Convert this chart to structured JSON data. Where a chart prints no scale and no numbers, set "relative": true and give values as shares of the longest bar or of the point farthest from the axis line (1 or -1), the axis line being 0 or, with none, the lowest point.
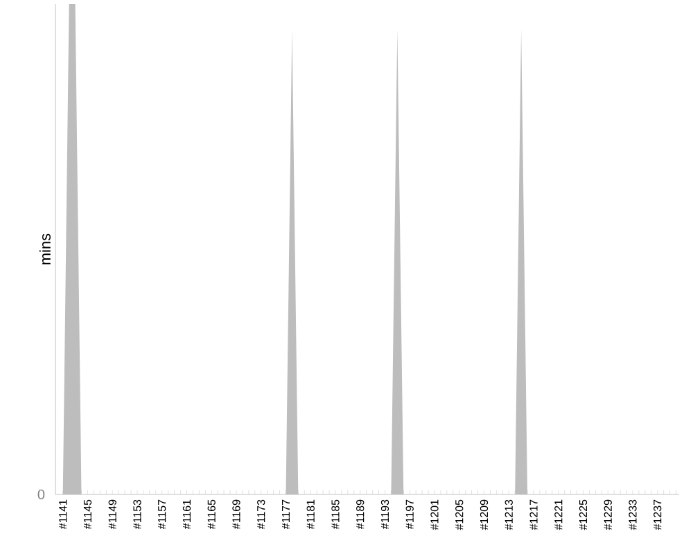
{
  "chart_data": {
    "type": "area",
    "ylabel": "mins",
    "relative": true,
    "annotations": [
      "0"
    ],
    "color": "#bdbdbd",
    "categories": [
      "#1141",
      null,
      null,
      null,
      "#1145",
      null,
      null,
      null,
      "#1149",
      null,
      null,
      null,
      "#1153",
      null,
      null,
      null,
      "#1157",
      null,
      null,
      null,
      "#1161",
      null,
      null,
      null,
      "#1165",
      null,
      null,
      null,
      "#1169",
      null,
      null,
      null,
      "#1173",
      null,
      null,
      null,
      "#1177",
      null,
      null,
      null,
      "#1181",
      null,
      null,
      null,
      "#1185",
      null,
      null,
      null,
      "#1189",
      null,
      null,
      null,
      "#1193",
      null,
      null,
      null,
      "#1197",
      null,
      null,
      null,
      "#1201",
      null,
      null,
      null,
      "#1205",
      null,
      null,
      null,
      "#1209",
      null,
      null,
      null,
      "#1213",
      null,
      null,
      null,
      "#1217",
      null,
      null,
      null,
      "#1221",
      null,
      null,
      null,
      "#1225",
      null,
      null,
      null,
      "#1229",
      null,
      null,
      null,
      "#1233",
      null,
      null,
      null,
      "#1237",
      null,
      null,
      null
    ],
    "values": [
      0,
      1,
      1,
      0,
      0,
      0,
      0,
      0,
      0,
      0,
      0,
      0,
      0,
      0,
      0,
      0,
      0,
      0,
      0,
      0,
      0,
      0,
      0,
      0,
      0,
      0,
      0,
      0,
      0,
      0,
      0,
      0,
      0,
      0,
      0,
      0,
      0,
      0.95,
      0,
      0,
      0,
      0,
      0,
      0,
      0,
      0,
      0,
      0,
      0,
      0,
      0,
      0,
      0,
      0,
      0.95,
      0,
      0,
      0,
      0,
      0,
      0,
      0,
      0,
      0,
      0,
      0,
      0,
      0,
      0,
      0,
      0,
      0,
      0,
      0,
      0.95,
      0,
      0,
      0,
      0,
      0,
      0,
      0,
      0,
      0,
      0,
      0,
      0,
      0,
      0,
      0,
      0,
      0,
      0,
      0,
      0,
      0,
      0,
      0,
      0,
      0
    ]
  }
}
